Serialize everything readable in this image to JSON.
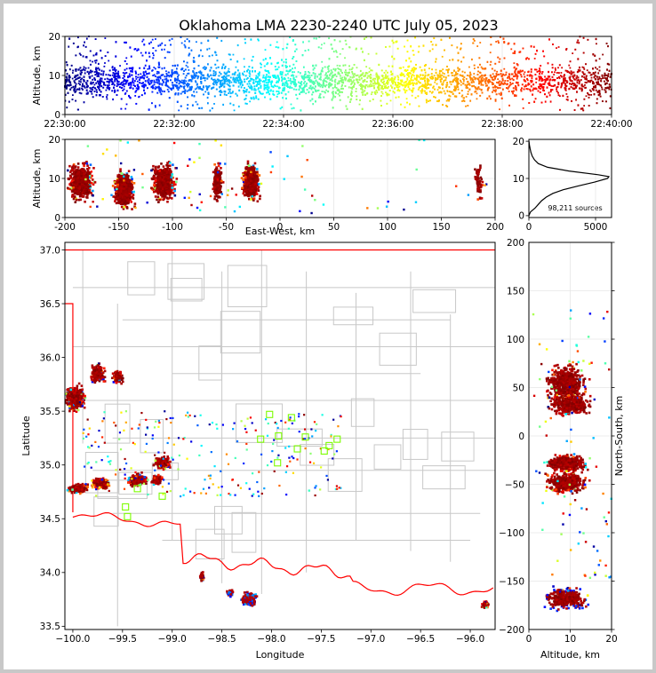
{
  "figure": {
    "title": "Oklahoma LMA 2230-2240 UTC July 05, 2023",
    "source_count_label": "98,211 sources"
  },
  "colors": {
    "background_frame": "#c8c8c8",
    "county_lines": "#c8c8c8",
    "state_and_river_lines": "#ff0000",
    "station_markers": "#7cfc00",
    "colormap": "jet (time-colored sources: blue early to dark red late)"
  },
  "chart_data": [
    {
      "id": "time_height",
      "type": "scatter",
      "title": "",
      "xlabel": "",
      "ylabel": "Altitude, km",
      "xlim": [
        "22:30:00",
        "22:40:00"
      ],
      "ylim": [
        0,
        20
      ],
      "xticks": [
        "22:30:00",
        "22:32:00",
        "22:34:00",
        "22:36:00",
        "22:38:00",
        "22:40:00"
      ],
      "yticks": [
        0,
        10,
        20
      ],
      "grid": true,
      "description_values": {
        "time_range_utc": [
          "22:30:00",
          "22:40:00"
        ],
        "altitude_range_km": [
          1,
          20
        ],
        "dense_altitude_band_km": [
          3,
          14
        ]
      }
    },
    {
      "id": "east_west_height",
      "type": "scatter",
      "xlabel": "East-West, km",
      "ylabel": "Altitude, km",
      "xlim": [
        -200,
        200
      ],
      "ylim": [
        0,
        20
      ],
      "xticks": [
        -200,
        -150,
        -100,
        -50,
        0,
        50,
        100,
        150,
        200
      ],
      "yticks": [
        0,
        10,
        20
      ],
      "grid": true,
      "clusters": [
        {
          "x_center": -185,
          "x_spread": 15,
          "z_center": 9
        },
        {
          "x_center": -145,
          "x_spread": 12,
          "z_center": 7
        },
        {
          "x_center": -108,
          "x_spread": 14,
          "z_center": 9
        },
        {
          "x_center": -58,
          "x_spread": 6,
          "z_center": 9
        },
        {
          "x_center": -27,
          "x_spread": 10,
          "z_center": 9
        },
        {
          "x_center": 185,
          "x_spread": 5,
          "z_center": 9
        }
      ]
    },
    {
      "id": "altitude_histogram",
      "type": "line",
      "xlabel": "",
      "ylabel": "",
      "xlim": [
        0,
        6200
      ],
      "ylim": [
        -0.5,
        20.5
      ],
      "xticks": [
        0,
        5000
      ],
      "yticks": [
        0,
        10,
        20
      ],
      "grid": true,
      "altitude_km": [
        0,
        1,
        2,
        3,
        4,
        5,
        6,
        7,
        8,
        9,
        10,
        10.5,
        11,
        12,
        13,
        14,
        15,
        16,
        17,
        18,
        19,
        20
      ],
      "source_counts": [
        0,
        120,
        450,
        700,
        950,
        1300,
        1800,
        2600,
        3700,
        4900,
        5900,
        6000,
        5200,
        3000,
        1400,
        700,
        420,
        250,
        150,
        90,
        40,
        10
      ]
    },
    {
      "id": "plan_view",
      "type": "scatter",
      "xlabel": "Longitude",
      "ylabel": "Latitude",
      "xlim": [
        -100.08,
        -95.75
      ],
      "ylim": [
        33.47,
        37.07
      ],
      "xticks": [
        -100.0,
        -99.5,
        -99.0,
        -98.5,
        -98.0,
        -97.5,
        -97.0,
        -96.5,
        -96.0
      ],
      "yticks": [
        33.5,
        34.0,
        34.5,
        35.0,
        35.5,
        36.0,
        36.5,
        37.0
      ],
      "xtick_labels": [
        "−100.0",
        "−99.5",
        "−99.0",
        "−98.5",
        "−98.0",
        "−97.5",
        "−97.0",
        "−96.5",
        "−96.0"
      ],
      "ytick_labels": [
        "33.5",
        "34.0",
        "34.5",
        "35.0",
        "35.5",
        "36.0",
        "36.5",
        "37.0"
      ],
      "grid": false,
      "clusters": [
        {
          "lon": -99.98,
          "lat": 35.62,
          "dlon": 0.1,
          "dlat": 0.12
        },
        {
          "lon": -99.75,
          "lat": 35.85,
          "dlon": 0.07,
          "dlat": 0.1
        },
        {
          "lon": -99.55,
          "lat": 35.82,
          "dlon": 0.05,
          "dlat": 0.06
        },
        {
          "lon": -99.95,
          "lat": 34.78,
          "dlon": 0.1,
          "dlat": 0.04
        },
        {
          "lon": -99.72,
          "lat": 34.83,
          "dlon": 0.09,
          "dlat": 0.05
        },
        {
          "lon": -99.35,
          "lat": 34.86,
          "dlon": 0.1,
          "dlat": 0.06
        },
        {
          "lon": -99.1,
          "lat": 35.02,
          "dlon": 0.08,
          "dlat": 0.06
        },
        {
          "lon": -99.15,
          "lat": 34.86,
          "dlon": 0.05,
          "dlat": 0.05
        },
        {
          "lon": -98.22,
          "lat": 33.75,
          "dlon": 0.08,
          "dlat": 0.06
        },
        {
          "lon": -98.42,
          "lat": 33.81,
          "dlon": 0.03,
          "dlat": 0.03
        },
        {
          "lon": -98.7,
          "lat": 33.96,
          "dlon": 0.02,
          "dlat": 0.04
        },
        {
          "lon": -95.85,
          "lat": 33.7,
          "dlon": 0.04,
          "dlat": 0.04
        }
      ],
      "stations": [
        {
          "lon": -98.02,
          "lat": 35.47
        },
        {
          "lon": -97.8,
          "lat": 35.44
        },
        {
          "lon": -98.11,
          "lat": 35.24
        },
        {
          "lon": -97.93,
          "lat": 35.27
        },
        {
          "lon": -97.66,
          "lat": 35.26
        },
        {
          "lon": -97.34,
          "lat": 35.24
        },
        {
          "lon": -97.42,
          "lat": 35.18
        },
        {
          "lon": -97.74,
          "lat": 35.15
        },
        {
          "lon": -97.47,
          "lat": 35.13
        },
        {
          "lon": -97.94,
          "lat": 35.02
        },
        {
          "lon": -99.35,
          "lat": 34.78
        },
        {
          "lon": -99.1,
          "lat": 34.71
        },
        {
          "lon": -99.47,
          "lat": 34.61
        },
        {
          "lon": -99.45,
          "lat": 34.52
        }
      ]
    },
    {
      "id": "north_south_height",
      "type": "scatter",
      "xlabel": "Altitude, km",
      "ylabel": "North-South, km",
      "xlim": [
        0,
        20
      ],
      "ylim": [
        -200,
        200
      ],
      "xticks": [
        0,
        10,
        20
      ],
      "yticks": [
        -200,
        -150,
        -100,
        -50,
        0,
        50,
        100,
        150,
        200
      ],
      "ytick_labels": [
        "−200",
        "−150",
        "−100",
        "−50",
        "0",
        "50",
        "100",
        "150",
        "200"
      ],
      "grid": true,
      "clusters": [
        {
          "y_center": 55,
          "y_spread": 18,
          "z_center": 9
        },
        {
          "y_center": 32,
          "y_spread": 10,
          "z_center": 10
        },
        {
          "y_center": -28,
          "y_spread": 8,
          "z_center": 9
        },
        {
          "y_center": -48,
          "y_spread": 10,
          "z_center": 9
        },
        {
          "y_center": -168,
          "y_spread": 10,
          "z_center": 9
        }
      ]
    }
  ]
}
